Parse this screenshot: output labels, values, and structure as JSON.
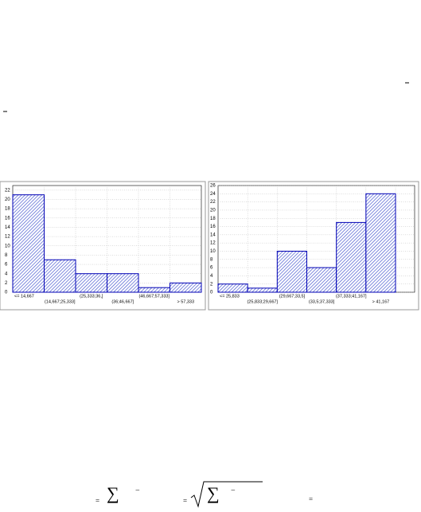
{
  "chart_data": [
    {
      "type": "bar",
      "categories": [
        "<= 14,667",
        "(14,667;25,333]",
        "(25,333;36,]",
        "(36;46,667]",
        "(46,667;57,333]",
        "> 57,333"
      ],
      "values": [
        21,
        7,
        4,
        4,
        1,
        2
      ],
      "ylim": [
        0,
        23
      ],
      "yticks": [
        0,
        2,
        4,
        6,
        8,
        10,
        12,
        14,
        16,
        18,
        20,
        22
      ],
      "grid": true,
      "color": "#0000b4"
    },
    {
      "type": "bar",
      "categories": [
        "<= 25,833",
        "(25,833;29,667]",
        "(29,667;33,5]",
        "(33,5;37,333]",
        "(37,333;41,167]",
        "> 41,167"
      ],
      "values": [
        2,
        1,
        10,
        6,
        17,
        24
      ],
      "ylim": [
        0,
        26
      ],
      "yticks": [
        0,
        2,
        4,
        6,
        8,
        10,
        12,
        14,
        16,
        18,
        20,
        22,
        24,
        26
      ],
      "grid": true,
      "color": "#0000b4"
    }
  ],
  "formula": [
    "=",
    "∑",
    "−",
    "=",
    "∑",
    "−",
    "="
  ]
}
